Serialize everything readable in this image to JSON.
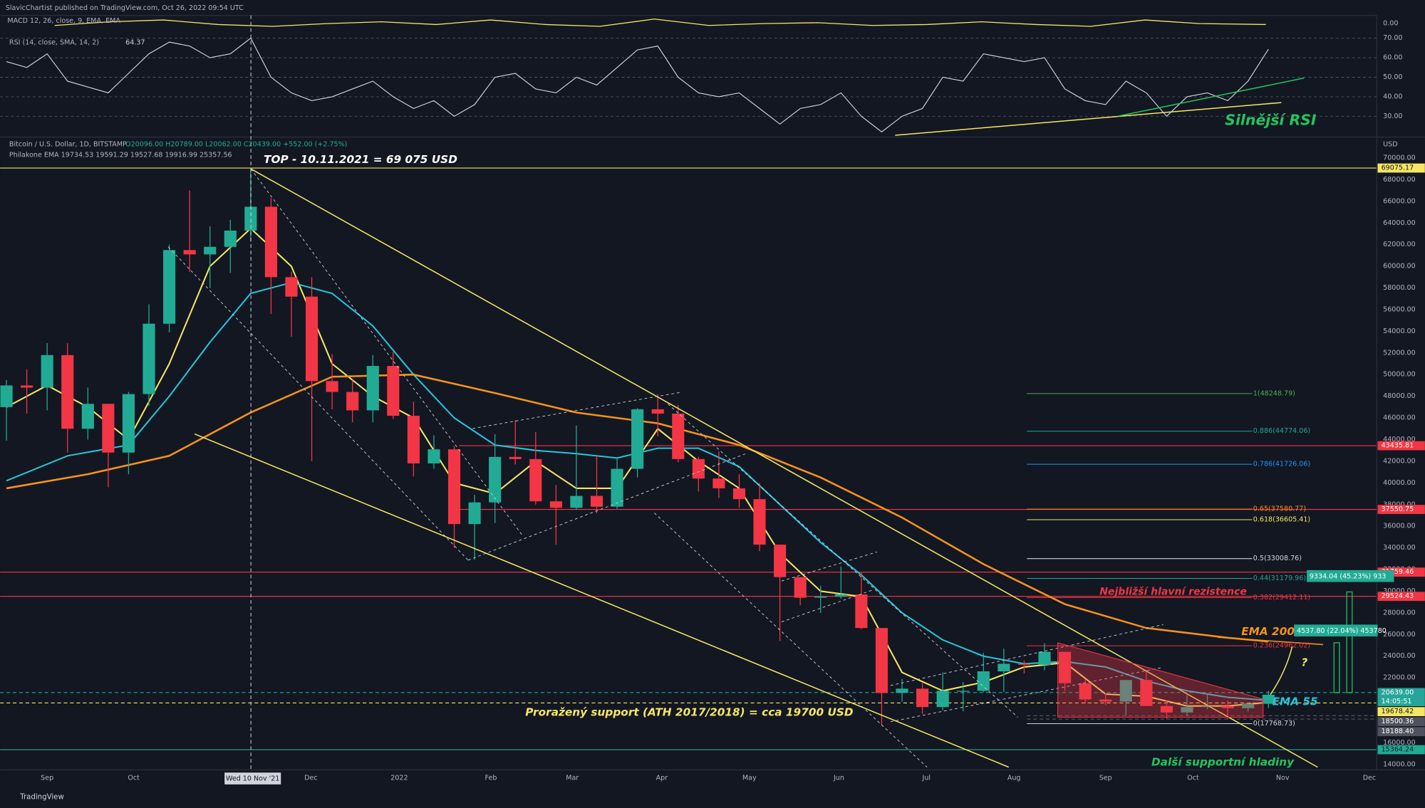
{
  "publisher": "SlavicChartist published on TradingView.com, Oct 26, 2022 09:54 UTC",
  "footer": "TradingView",
  "chart_data": [
    {
      "type": "candlestick",
      "title": "Bitcoin / U.S. Dollar, 1D, BITSTAMP",
      "ohlc_label": "O20096.00 H20789.00 L20062.00 C20439.00 +552.00 (+2.75%)",
      "indicator_label": "Philakone EMA 19734.53 19591.29 19527.68 19916.99 25357.56",
      "y_unit": "USD",
      "crosshair_label": "Wed 10 Nov '21",
      "countdown": "14:05:51",
      "up_color": "#22ab94",
      "down_color": "#f23645",
      "x": [
        0,
        1,
        2,
        3,
        4,
        5,
        6,
        7,
        8,
        9,
        10,
        11,
        12,
        13,
        14,
        15,
        16,
        17,
        18,
        19,
        20,
        21,
        22,
        23,
        24,
        25,
        26,
        27,
        28,
        29,
        30,
        31,
        32,
        33,
        34,
        35,
        36,
        37,
        38,
        39,
        40,
        41,
        42,
        43,
        44,
        45,
        46,
        47,
        48,
        49,
        50,
        51,
        52,
        53,
        54,
        55,
        56,
        57,
        58,
        59,
        60,
        61,
        62
      ],
      "open": [
        47000,
        49000,
        48800,
        51800,
        45000,
        47300,
        42800,
        48200,
        54700,
        61500,
        61100,
        61800,
        63300,
        65500,
        59000,
        57200,
        49400,
        48400,
        46700,
        50800,
        46200,
        41800,
        43100,
        36200,
        38200,
        42400,
        42200,
        38300,
        37700,
        38800,
        37800,
        41300,
        46800,
        46400,
        42200,
        40400,
        39500,
        38500,
        34300,
        31300,
        29400,
        29500,
        29700,
        26600,
        20600,
        21000,
        19300,
        20800,
        20800,
        22600,
        23300,
        23200,
        24400,
        21500,
        20000,
        19800,
        21800,
        19400,
        18800,
        19300,
        19400,
        19200,
        19600
      ],
      "high": [
        49500,
        50500,
        52900,
        52900,
        48800,
        47300,
        48400,
        56500,
        62000,
        67000,
        63700,
        64300,
        69000,
        66300,
        59500,
        59000,
        51900,
        49500,
        51800,
        52100,
        47500,
        44400,
        43400,
        38900,
        44500,
        45800,
        44700,
        39800,
        45300,
        42600,
        42300,
        46900,
        48200,
        47200,
        42400,
        42900,
        40800,
        40000,
        34300,
        31300,
        30500,
        32300,
        31700,
        26600,
        21900,
        21500,
        22500,
        21600,
        24300,
        24700,
        23600,
        25200,
        24400,
        21900,
        20600,
        21800,
        22700,
        19900,
        20400,
        20500,
        19900,
        19700,
        20800
      ],
      "low": [
        43900,
        46400,
        46700,
        42800,
        44000,
        39600,
        40800,
        47100,
        53900,
        59500,
        58000,
        59400,
        62300,
        55600,
        53500,
        42000,
        46800,
        45600,
        45600,
        45900,
        40600,
        41300,
        34000,
        32900,
        36300,
        41700,
        38000,
        34300,
        37500,
        37200,
        37600,
        40500,
        44300,
        41900,
        39200,
        38600,
        37700,
        33700,
        25400,
        28700,
        28000,
        29300,
        26500,
        17600,
        19800,
        18700,
        19000,
        18900,
        20700,
        20700,
        22400,
        22700,
        20800,
        19600,
        19500,
        18500,
        19400,
        18200,
        18500,
        19100,
        18200,
        18900,
        19200
      ],
      "close": [
        49000,
        48800,
        51800,
        45000,
        47300,
        42800,
        48200,
        54700,
        61500,
        61100,
        61800,
        63300,
        65500,
        59000,
        57200,
        49400,
        48400,
        46700,
        50800,
        46200,
        41800,
        43100,
        36200,
        38200,
        42400,
        42200,
        38300,
        37700,
        38800,
        37800,
        41300,
        46800,
        46400,
        42200,
        40400,
        39500,
        38500,
        34300,
        31300,
        29400,
        29500,
        29700,
        26600,
        20600,
        21000,
        19300,
        20800,
        20800,
        22600,
        23300,
        23200,
        24400,
        21500,
        20000,
        19800,
        21800,
        19400,
        18800,
        19300,
        19400,
        19200,
        19600,
        20439
      ],
      "lines": [
        {
          "color": "#f5e663",
          "x": [
            0,
            2,
            4,
            6,
            8,
            10,
            12,
            14,
            16,
            18,
            20,
            22,
            24,
            26,
            28,
            30,
            32,
            34,
            36,
            38,
            40,
            42,
            44,
            46,
            48,
            50,
            52,
            54,
            56,
            58,
            60,
            62
          ],
          "values": [
            47000,
            49000,
            47000,
            44000,
            51000,
            60000,
            63500,
            60000,
            51000,
            48000,
            46000,
            40000,
            39000,
            42000,
            39500,
            39500,
            45000,
            42000,
            39500,
            33500,
            30000,
            29500,
            22500,
            20800,
            21600,
            23000,
            23400,
            20500,
            20300,
            19400,
            19400,
            19735
          ]
        },
        {
          "color": "#26c6da",
          "x": [
            0,
            3,
            6,
            8,
            10,
            12,
            14,
            16,
            18,
            20,
            22,
            24,
            26,
            28,
            30,
            32,
            34,
            36,
            38,
            40,
            42,
            44,
            46,
            48,
            50,
            52,
            54,
            56,
            58,
            60,
            62
          ],
          "values": [
            40200,
            42500,
            43500,
            48000,
            53000,
            57500,
            58500,
            57500,
            54500,
            50000,
            46000,
            43500,
            43000,
            42700,
            42300,
            43200,
            43200,
            41500,
            38000,
            34500,
            31500,
            28000,
            25500,
            24000,
            23300,
            23500,
            23000,
            21700,
            20800,
            20200,
            19917
          ]
        },
        {
          "color": "#f7931a",
          "x": [
            0,
            4,
            8,
            12,
            16,
            20,
            24,
            28,
            32,
            36,
            40,
            44,
            48,
            52,
            56,
            60,
            62
          ],
          "values": [
            39500,
            40800,
            42500,
            46500,
            49800,
            50000,
            48300,
            46500,
            45500,
            43500,
            40500,
            36800,
            32500,
            28800,
            26600,
            25700,
            25357
          ]
        }
      ],
      "levels": [
        {
          "value": 69075.17,
          "color": "#f5e663",
          "text_color": "#131722"
        },
        {
          "value": 43435.81,
          "color": "#f23645",
          "text_color": "#ffffff"
        },
        {
          "value": 37550.75,
          "color": "#f23645",
          "text_color": "#ffffff"
        },
        {
          "value": 31759.46,
          "color": "#f23645",
          "text_color": "#ffffff"
        },
        {
          "value": 29524.43,
          "color": "#f23645",
          "text_color": "#ffffff"
        },
        {
          "value": 20639,
          "label": "20639.00",
          "color": "#26a69a",
          "text_color": "#ffffff"
        },
        {
          "value": 19678.42,
          "color": "#f5e663",
          "text_color": "#131722"
        },
        {
          "value": 18500.36,
          "color": "#50535e",
          "text_color": "#ffffff"
        },
        {
          "value": 18188.4,
          "label": "18188.40",
          "color": "#50535e",
          "text_color": "#ffffff"
        },
        {
          "value": 15364.24,
          "color": "#22ab94",
          "text_color": "#131722"
        }
      ],
      "fib": [
        {
          "label": "1(48248.79)",
          "value": 48248.79,
          "color": "#4caf50"
        },
        {
          "label": "0.886(44774.06)",
          "value": 44774.06,
          "color": "#26a69a"
        },
        {
          "label": "0.786(41726.06)",
          "value": 41726.06,
          "color": "#2196f3"
        },
        {
          "label": "0.65(37580.77)",
          "value": 37580.77,
          "color": "#f7931a"
        },
        {
          "label": "0.618(36605.41)",
          "value": 36605.41,
          "color": "#f5e663"
        },
        {
          "label": "0.5(33008.76)",
          "value": 33008.76,
          "color": "#d1d4dc"
        },
        {
          "label": "0.44(31179.96)",
          "value": 31179.96,
          "color": "#26a69a"
        },
        {
          "label": "0.382(29412.11)",
          "value": 29412.11,
          "color": "#f23645"
        },
        {
          "label": "0.236(24962.02)",
          "value": 24962.02,
          "color": "#f23645"
        },
        {
          "label": "0(17768.73)",
          "value": 17768.73,
          "color": "#d1d4dc"
        }
      ],
      "measures": [
        "9334.04 (45.23%) 933",
        "4537.80 (22.04%) 453780"
      ],
      "annotations": [
        {
          "text": "TOP - 10.11.2021 = 69 075 USD",
          "color": "#ffffff"
        },
        {
          "text": "Nejbližší hlavní rezistence",
          "color": "#f23645"
        },
        {
          "text": "EMA 200",
          "color": "#f7931a"
        },
        {
          "text": "?",
          "color": "#f5e663"
        },
        {
          "text": "EMA 55",
          "color": "#26c6da"
        },
        {
          "text": "Proražený support (ATH 2017/2018) = cca 19700 USD",
          "color": "#f5e663"
        },
        {
          "text": "Další supportní hladiny",
          "color": "#22c55e"
        },
        {
          "text": "Silnější RSI",
          "color": "#22c55e"
        }
      ],
      "xlim": [
        -0.31,
        67.32
      ],
      "ylim": [
        13500,
        71850
      ],
      "xticks": [
        {
          "value": 2,
          "label": "Sep"
        },
        {
          "value": 6.25,
          "label": "Oct"
        },
        {
          "value": 14.96,
          "label": "Dec"
        },
        {
          "value": 19.3,
          "label": "2022"
        },
        {
          "value": 23.8,
          "label": "Feb"
        },
        {
          "value": 27.8,
          "label": "Mar"
        },
        {
          "value": 32.2,
          "label": "Apr"
        },
        {
          "value": 36.5,
          "label": "May"
        },
        {
          "value": 40.9,
          "label": "Jun"
        },
        {
          "value": 45.2,
          "label": "Jul"
        },
        {
          "value": 49.5,
          "label": "Aug"
        },
        {
          "value": 54,
          "label": "Sep"
        },
        {
          "value": 58.3,
          "label": "Oct"
        },
        {
          "value": 62.7,
          "label": "Nov"
        },
        {
          "value": 66.96,
          "label": "Dec"
        }
      ],
      "yticks": [
        {
          "value": 14000,
          "label": "14000.00"
        },
        {
          "value": 16000,
          "label": "16000.00"
        },
        {
          "value": 18000,
          "label": "18000.00"
        },
        {
          "value": 20000,
          "label": "20000.00"
        },
        {
          "value": 22000,
          "label": "22000.00"
        },
        {
          "value": 24000,
          "label": "24000.00"
        },
        {
          "value": 26000,
          "label": "26000.00"
        },
        {
          "value": 28000,
          "label": "28000.00"
        },
        {
          "value": 30000,
          "label": "30000.00"
        },
        {
          "value": 32000,
          "label": "32000.00"
        },
        {
          "value": 34000,
          "label": "34000.00"
        },
        {
          "value": 36000,
          "label": "36000.00"
        },
        {
          "value": 38000,
          "label": "38000.00"
        },
        {
          "value": 40000,
          "label": "40000.00"
        },
        {
          "value": 42000,
          "label": "42000.00"
        },
        {
          "value": 44000,
          "label": "44000.00"
        },
        {
          "value": 46000,
          "label": "46000.00"
        },
        {
          "value": 48000,
          "label": "48000.00"
        },
        {
          "value": 50000,
          "label": "50000.00"
        },
        {
          "value": 52000,
          "label": "52000.00"
        },
        {
          "value": 54000,
          "label": "54000.00"
        },
        {
          "value": 56000,
          "label": "56000.00"
        },
        {
          "value": 58000,
          "label": "58000.00"
        },
        {
          "value": 60000,
          "label": "60000.00"
        },
        {
          "value": 62000,
          "label": "62000.00"
        },
        {
          "value": 64000,
          "label": "64000.00"
        },
        {
          "value": 66000,
          "label": "66000.00"
        },
        {
          "value": 68000,
          "label": "68000.00"
        },
        {
          "value": 70000,
          "label": "70000.00"
        }
      ]
    },
    {
      "type": "line",
      "title": "RSI (14, close, SMA, 14, 2)",
      "color": "#d1d4dc",
      "grid": true,
      "x": [
        0,
        1,
        2,
        3,
        4,
        5,
        6,
        7,
        8,
        9,
        10,
        11,
        12,
        13,
        14,
        15,
        16,
        17,
        18,
        19,
        20,
        21,
        22,
        23,
        24,
        25,
        26,
        27,
        28,
        29,
        30,
        31,
        32,
        33,
        34,
        35,
        36,
        37,
        38,
        39,
        40,
        41,
        42,
        43,
        44,
        45,
        46,
        47,
        48,
        49,
        50,
        51,
        52,
        53,
        54,
        55,
        56,
        57,
        58,
        59,
        60,
        61,
        62
      ],
      "values": [
        58,
        55,
        62,
        48,
        45,
        42,
        52,
        62,
        68,
        66,
        60,
        62,
        70,
        50,
        42,
        38,
        40,
        44,
        48,
        40,
        34,
        38,
        30,
        36,
        50,
        52,
        44,
        42,
        50,
        46,
        55,
        64,
        66,
        50,
        42,
        40,
        42,
        34,
        26,
        34,
        36,
        42,
        30,
        22,
        30,
        34,
        50,
        48,
        62,
        60,
        58,
        60,
        44,
        38,
        36,
        48,
        42,
        30,
        40,
        42,
        38,
        48,
        64.37
      ],
      "xlim": [
        -0.31,
        67.32
      ],
      "ylim": [
        19.8,
        81.2
      ],
      "yticks": [
        {
          "value": 70,
          "label": "70.00"
        },
        {
          "value": 60,
          "label": "60.00"
        },
        {
          "value": 50,
          "label": "50.00"
        },
        {
          "value": 40,
          "label": "40.00"
        },
        {
          "value": 30,
          "label": "30.00"
        }
      ]
    },
    {
      "type": "macd",
      "title": "MACD 12, 26, close, 9, EMA, EMA",
      "yticks": [
        {
          "value": 0,
          "label": "0.00"
        }
      ]
    }
  ]
}
